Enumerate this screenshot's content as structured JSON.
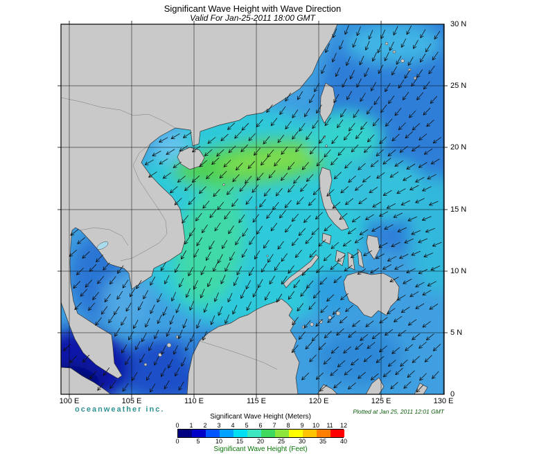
{
  "header": {
    "title": "Significant Wave Height with Wave Direction",
    "subtitle": "Valid For Jan-25-2011 18:00 GMT"
  },
  "axes": {
    "x_ticks": [
      "100 E",
      "105 E",
      "110 E",
      "115 E",
      "120 E",
      "125 E",
      "130 E"
    ],
    "y_ticks": [
      "30 N",
      "25 N",
      "20 N",
      "15 N",
      "10 N",
      "5 N",
      "0"
    ]
  },
  "footer": {
    "brand": "oceanweather inc.",
    "brand_color": "#2f9490",
    "plotted": "Plotted at Jan 25, 2011 12:01 GMT"
  },
  "legend": {
    "meters_label": "Significant Wave Height (Meters)",
    "feet_label": "Significant Wave Height (Feet)",
    "meters_ticks": [
      "0",
      "1",
      "2",
      "3",
      "4",
      "5",
      "6",
      "7",
      "8",
      "9",
      "10",
      "11",
      "12"
    ],
    "feet_ticks": [
      "0",
      "5",
      "10",
      "15",
      "20",
      "25",
      "30",
      "35",
      "40"
    ],
    "colors": [
      "#000080",
      "#0000c8",
      "#0055ff",
      "#00a2ff",
      "#00e0f2",
      "#3ee6c0",
      "#3fd95f",
      "#8ce63c",
      "#ffff00",
      "#ffc400",
      "#ff7e00",
      "#ff0000"
    ]
  },
  "map_colors": {
    "land": "#c9c9c9",
    "sea_base": "#3f9fe0",
    "high_wave_streak": "#7fdd4f",
    "low_wave_corner": "#050d66"
  }
}
